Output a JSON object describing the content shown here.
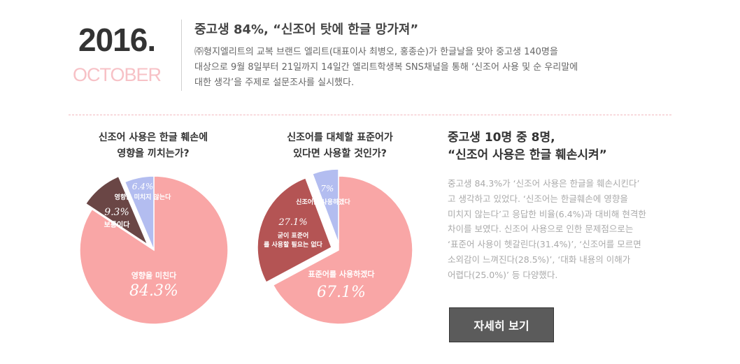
{
  "header": {
    "year": "2016.",
    "month": "OCTOBER",
    "headline": "중고생 84%, “신조어 탓에 한글 망가져”",
    "intro_lines": [
      "㈜형지엘리트의 교복 브랜드 엘리트(대표이사 최병오, 홍종순)가 한글날을 맞아 중고생 140명을",
      "대상으로 9월 8일부터 21일까지 14일간 엘리트학생복 SNS채널을 통해 ‘신조어 사용 및 순 우리말에",
      "대한 생각’을 주제로 설문조사를 실시했다."
    ]
  },
  "chart_data": [
    {
      "type": "pie",
      "title_lines": [
        "신조어 사용은 한글 훼손에",
        "영향을 끼치는가?"
      ],
      "slices": [
        {
          "label": "영향을 미친다",
          "value": 84.3,
          "value_text": "84.3%",
          "color": "#f9a6a6"
        },
        {
          "label": "보통이다",
          "value": 9.3,
          "value_text": "9.3%",
          "color": "#6a4645"
        },
        {
          "label": "영향을 미치지 않는다",
          "value": 6.4,
          "value_text": "6.4%",
          "color": "#b3bdf0"
        }
      ]
    },
    {
      "type": "pie",
      "title_lines": [
        "신조어를 대체할 표준어가",
        "있다면 사용할 것인가?"
      ],
      "slices": [
        {
          "label": "표준어를 사용하겠다",
          "value": 67.1,
          "value_text": "67.1%",
          "color": "#f9a6a6"
        },
        {
          "label": "굳이 표준어를 사용할 필요는 없다",
          "value": 27.1,
          "value_text": "27.1%",
          "color": "#b45454"
        },
        {
          "label": "신조어를 사용하겠다",
          "value": 5.7,
          "value_text": "5.7%",
          "color": "#b3bdf0"
        }
      ]
    }
  ],
  "summary": {
    "title_lines": [
      "중고생 10명 중 8명,",
      "“신조어 사용은 한글 훼손시켜”"
    ],
    "body_lines": [
      "중고생 84.3%가 ‘신조어 사용은 한글을 훼손시킨다’",
      "고 생각하고 있었다. ‘신조어는 한글훼손에 영향을",
      "미치지 않는다’고 응답한 비율(6.4%)과 대비해 현격한",
      "차이를 보였다. 신조어 사용으로 인한 문제점으로는",
      "‘표준어 사용이 헷갈린다(31.4%)’, ‘신조어를 모르면",
      "소외감이 느껴진다(28.5%)’, ‘대화 내용의 이해가",
      "어렵다(25.0%)’ 등 다양했다."
    ],
    "button_label": "자세히 보기"
  }
}
